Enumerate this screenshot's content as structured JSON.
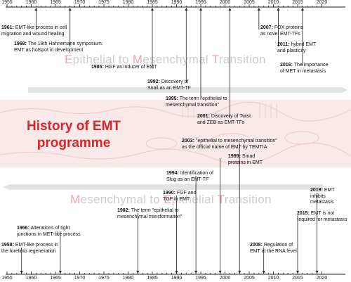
{
  "title": "History of EMT\nprogramme",
  "axis": {
    "ticks": [
      "1955",
      "1960",
      "1965",
      "1970",
      "1975",
      "1980",
      "1985",
      "1990",
      "1995",
      "2000",
      "2005",
      "2010",
      "2015",
      "2020"
    ]
  },
  "band_top": {
    "parts": [
      {
        "text": "E",
        "accent": true
      },
      {
        "text": "pithelial to ",
        "accent": false
      },
      {
        "text": "M",
        "accent": true
      },
      {
        "text": "esenchymal ",
        "accent": false
      },
      {
        "text": "T",
        "accent": true
      },
      {
        "text": "ransition",
        "accent": false
      }
    ]
  },
  "band_bottom": {
    "parts": [
      {
        "text": "M",
        "accent": true
      },
      {
        "text": "esenchymal to ",
        "accent": false
      },
      {
        "text": "E",
        "accent": true
      },
      {
        "text": "pithelial ",
        "accent": false
      },
      {
        "text": "T",
        "accent": true
      },
      {
        "text": "ransition",
        "accent": false
      }
    ]
  },
  "events_top": [
    {
      "year_label": "1961:",
      "text": "EMT-like process in cell\nmigration and  wound healing"
    },
    {
      "year_label": "1968:",
      "text": "The 18th Hahnemann symposium:\nEMT as hotspot in development"
    },
    {
      "year_label": "1985:",
      "text": "HGF as inducer of EMT"
    },
    {
      "year_label": "1992:",
      "text": "Discovery of\nSnail as an EMT-TF"
    },
    {
      "year_label": "1995:",
      "text": "The term \"epithelial to\nmesenchymal transition\""
    },
    {
      "year_label": "2001:",
      "text": "Discovery of Twist\nand ZEB as EMT-TFs"
    },
    {
      "year_label": "2007:",
      "text": "FOX proteins\nas novel EMT-TFs"
    },
    {
      "year_label": "2011:",
      "text": "hybrid EMT\nand plasticity"
    },
    {
      "year_label": "2016:",
      "text": "The importance\nof MET in metastasis"
    }
  ],
  "events_bottom": [
    {
      "year_label": "2003:",
      "text": "\"epithelial to mesenchymal transition\"\nas the official name of EMT by TEMTIA"
    },
    {
      "year_label": "1999:",
      "text": "Smad\nproteins in EMT"
    },
    {
      "year_label": "1994:",
      "text": "Identification of\nSlug as an EMT-TF"
    },
    {
      "year_label": "1990:",
      "text": "FGF and\nTGF in EMT"
    },
    {
      "year_label": "1982:",
      "text": "The term \"epithelial to\nmesenchymal transformation\""
    },
    {
      "year_label": "2019:",
      "text": "EMT inhibits\nmetastasis"
    },
    {
      "year_label": "2015:",
      "text": "EMT is not\nrequired for metastasis"
    },
    {
      "year_label": "1966:",
      "text": "Alterations of tight\njunctions in MET-like process"
    },
    {
      "year_label": "1958:",
      "text": "EMT-like process in\nthe forelimb regeneration"
    },
    {
      "year_label": "2008:",
      "text": "Regulation of\nEMT at the RNA level"
    }
  ],
  "colors": {
    "title_red": "#d8262a",
    "axis": "#222222",
    "band": "#f9e9e9",
    "arrow_band": "#e6e6e6"
  }
}
